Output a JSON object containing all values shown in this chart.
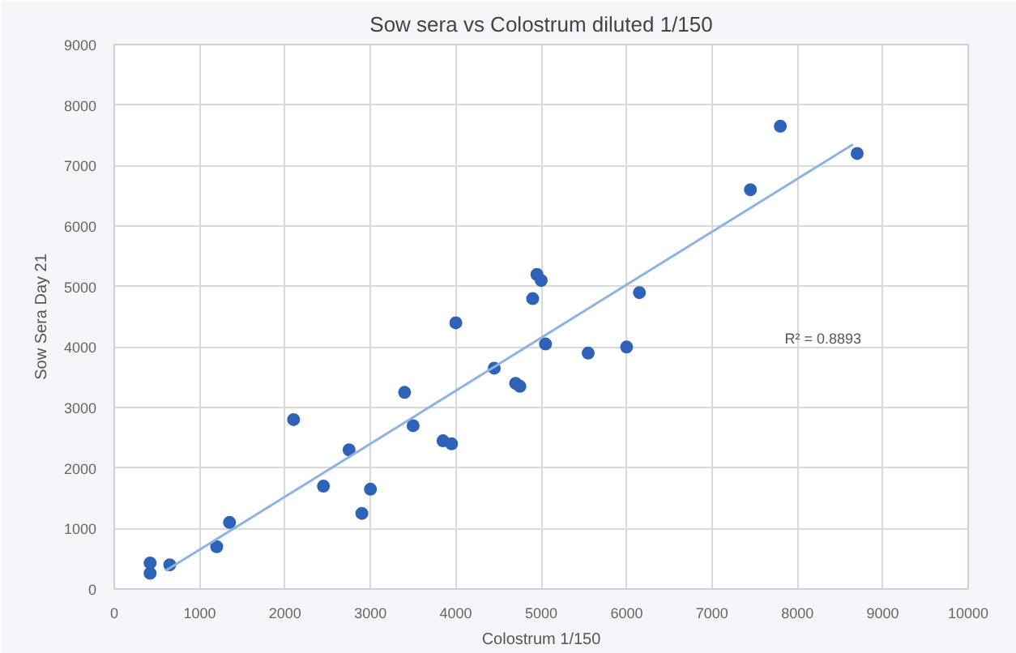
{
  "chart_data": {
    "type": "scatter",
    "title": "Sow sera vs Colostrum diluted 1/150",
    "xlabel": "Colostrum 1/150",
    "ylabel": "Sow Sera Day 21",
    "xlim": [
      0,
      10000
    ],
    "ylim": [
      0,
      9000
    ],
    "xticks": [
      0,
      1000,
      2000,
      3000,
      4000,
      5000,
      6000,
      7000,
      8000,
      9000,
      10000
    ],
    "yticks": [
      0,
      1000,
      2000,
      3000,
      4000,
      5000,
      6000,
      7000,
      8000,
      9000
    ],
    "grid": true,
    "series": [
      {
        "marker": "circle",
        "color": "#2e63b8",
        "x": [
          420,
          420,
          650,
          1200,
          1350,
          2100,
          2450,
          2750,
          2900,
          3000,
          3400,
          3500,
          3850,
          3950,
          4000,
          4450,
          4700,
          4750,
          4900,
          4950,
          5000,
          5050,
          5550,
          6000,
          6150,
          7450,
          7800,
          8700
        ],
        "values": [
          430,
          260,
          400,
          700,
          1100,
          2800,
          1700,
          2300,
          1250,
          1650,
          3250,
          2700,
          2450,
          2400,
          4400,
          3650,
          3400,
          3350,
          4800,
          5200,
          5100,
          4050,
          3900,
          4000,
          4900,
          6600,
          7650,
          7200
        ]
      },
      {
        "type": "line",
        "color": "#8fb3e0",
        "x": [
          600,
          8650
        ],
        "values": [
          300,
          7350
        ]
      }
    ],
    "annotations": [
      "R² = 0.8893"
    ]
  }
}
